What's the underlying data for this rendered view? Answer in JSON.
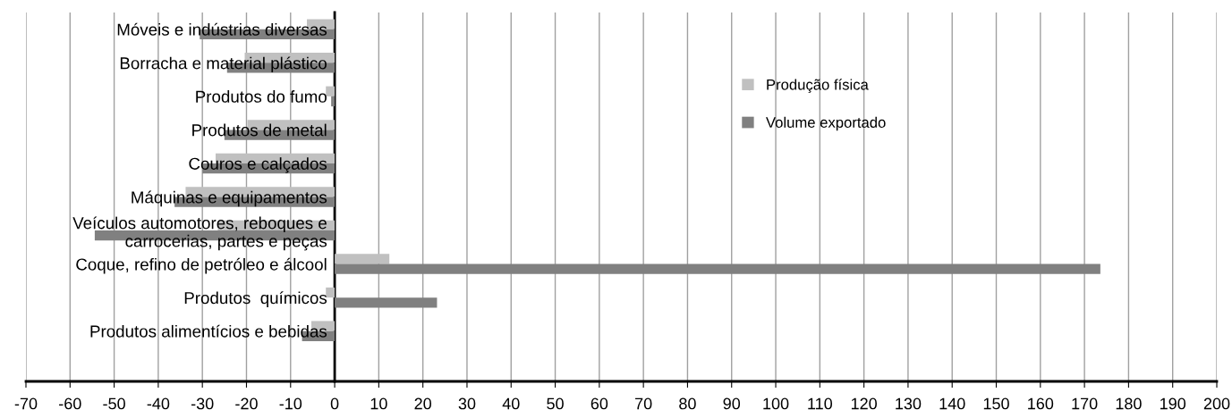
{
  "chart_data": {
    "type": "bar",
    "orientation": "horizontal",
    "categories": [
      "Móveis e indústrias diversas",
      "Borracha e material plástico",
      "Produtos do fumo",
      "Produtos de metal",
      "Couros e calçados",
      "Máquinas e equipamentos",
      "Veículos automotores, reboques e\ncarrocerias, partes e peças",
      "Coque, refino de petróleo e álcool",
      "Produtos  químicos",
      "Produtos alimentícios e bebidas",
      null
    ],
    "series": [
      {
        "name": "Produção física",
        "color": "#c0c0c0",
        "values": [
          -6.3,
          -20.4,
          -2,
          -19.8,
          -27,
          -33.8,
          -26.5,
          12.4,
          -2,
          -5.3,
          null
        ]
      },
      {
        "name": "Volume exportado",
        "color": "#808080",
        "values": [
          -30.6,
          -24.4,
          -0.8,
          -25,
          -30,
          -36.3,
          -54.4,
          173.6,
          23.2,
          -7.4,
          null
        ]
      }
    ],
    "xlim": [
      -70,
      200
    ],
    "xticks": [
      -70,
      -60,
      -50,
      -40,
      -30,
      -20,
      -10,
      0,
      10,
      20,
      30,
      40,
      50,
      60,
      70,
      80,
      90,
      100,
      110,
      120,
      130,
      140,
      150,
      160,
      170,
      180,
      190,
      200
    ],
    "grid": "x",
    "legend": "right"
  }
}
